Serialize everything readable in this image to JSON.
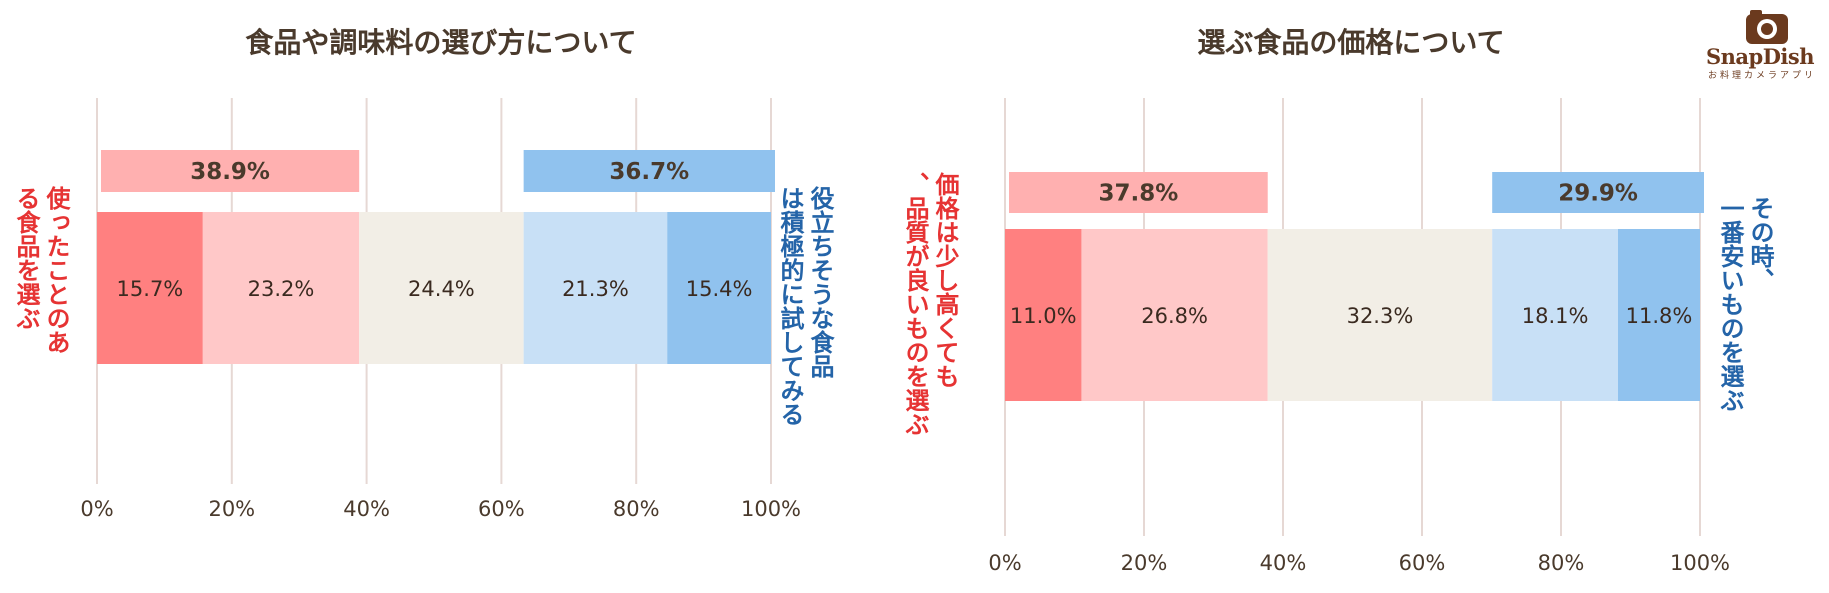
{
  "colors": {
    "red_dark": "#ff8080",
    "red_light": "#ffc8c8",
    "neutral": "#f2eee6",
    "blue_light": "#c8e0f6",
    "blue_dark": "#90c2ee",
    "red_sum": "#ffb0b0",
    "blue_sum": "#90c2ee",
    "grid": "#e6d8d4"
  },
  "logo": {
    "word": "SnapDish",
    "sub": "お料理カメラアプリ",
    "icon": "camera-icon"
  },
  "chart_data": [
    {
      "type": "bar",
      "stacked": true,
      "orientation": "horizontal",
      "title": "食品や調味料の選び方について",
      "xlim": [
        0,
        100
      ],
      "ticks": [
        "0%",
        "20%",
        "40%",
        "60%",
        "80%",
        "100%"
      ],
      "grid": true,
      "left_label": "使ったことのある食品を選ぶ",
      "right_label": "役立ちそうな食品は積極的に試してみる",
      "segments": [
        15.7,
        23.2,
        24.4,
        21.3,
        15.4
      ],
      "segment_labels": [
        "15.7%",
        "23.2%",
        "24.4%",
        "21.3%",
        "15.4%"
      ],
      "left_total": "38.9%",
      "right_total": "36.7%"
    },
    {
      "type": "bar",
      "stacked": true,
      "orientation": "horizontal",
      "title": "選ぶ食品の価格について",
      "xlim": [
        0,
        100
      ],
      "ticks": [
        "0%",
        "20%",
        "40%",
        "60%",
        "80%",
        "100%"
      ],
      "grid": true,
      "left_label": "価格は少し高くても、品質が良いものを選ぶ",
      "right_label": "その時、一番安いものを選ぶ",
      "segments": [
        11.0,
        26.8,
        32.3,
        18.1,
        11.8
      ],
      "segment_labels": [
        "11.0%",
        "26.8%",
        "32.3%",
        "18.1%",
        "11.8%"
      ],
      "left_total": "37.8%",
      "right_total": "29.9%"
    }
  ]
}
